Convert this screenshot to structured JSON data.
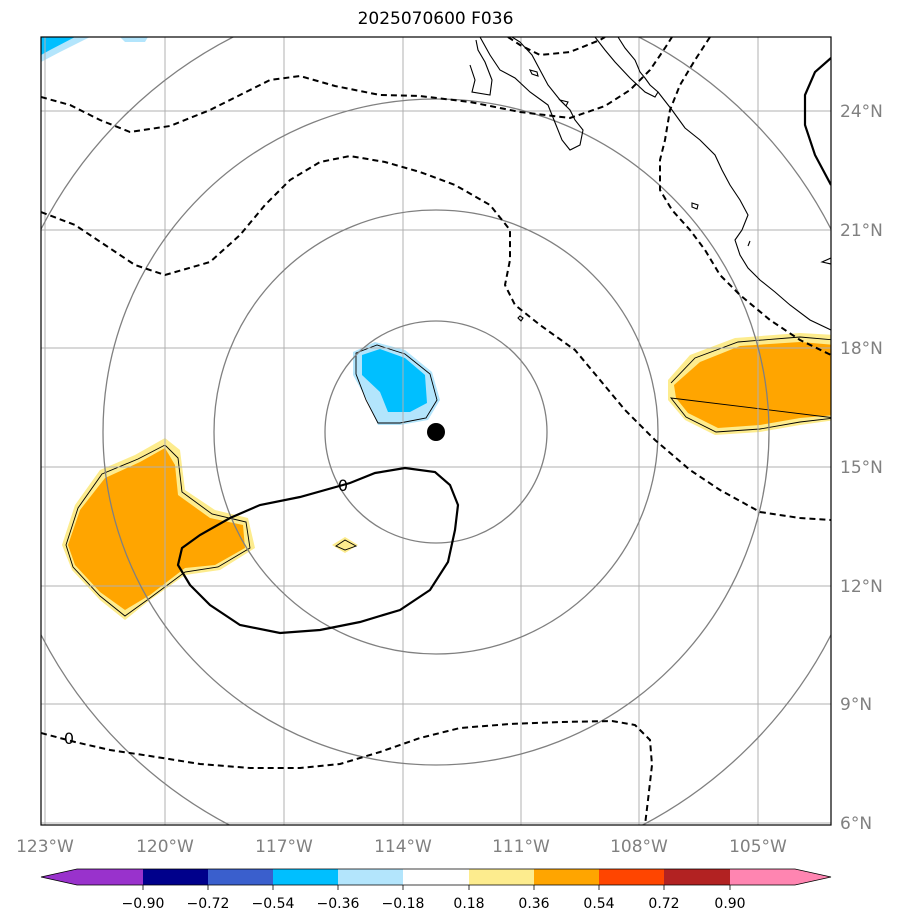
{
  "title": "2025070600 F036",
  "map": {
    "lon_ticks": [
      "123°W",
      "120°W",
      "117°W",
      "114°W",
      "111°W",
      "108°W",
      "105°W"
    ],
    "lat_ticks": [
      "24°N",
      "21°N",
      "18°N",
      "15°N",
      "12°N",
      "9°N",
      "6°N"
    ],
    "center_marker": {
      "lat": 15.8,
      "lon": -113.1
    },
    "range_rings": 4,
    "contour_labels": [
      "0",
      "0"
    ],
    "colors": {
      "coast": "#000000",
      "grid": "#b0b0b0",
      "rings": "#808080",
      "positive_light": "#fdec8e",
      "positive_main": "#ffa500",
      "negative_light": "#b3e5fc",
      "negative_main": "#00bfff"
    }
  },
  "colorbar": {
    "levels": [
      "−0.90",
      "−0.72",
      "−0.54",
      "−0.36",
      "−0.18",
      "0.18",
      "0.36",
      "0.54",
      "0.72",
      "0.90"
    ],
    "colors": [
      "#9932cc",
      "#00008b",
      "#3a5fcd",
      "#00bfff",
      "#b3e5fc",
      "#ffffff",
      "#fdec8e",
      "#ffa500",
      "#ff4500",
      "#b22222",
      "#ff85b1"
    ]
  }
}
